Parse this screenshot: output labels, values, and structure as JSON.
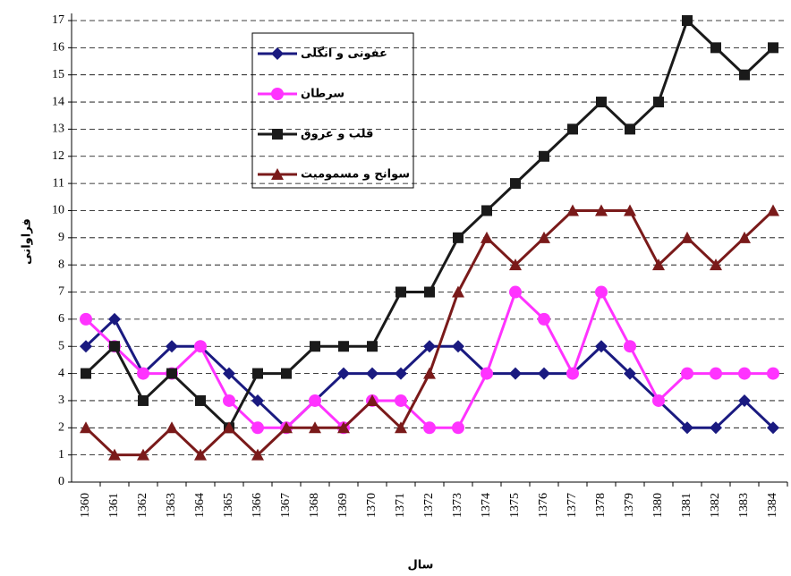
{
  "chart_data": {
    "type": "line",
    "x_label": "سال",
    "y_label": "فراوانی",
    "categories": [
      "1360",
      "1361",
      "1362",
      "1363",
      "1364",
      "1365",
      "1366",
      "1367",
      "1368",
      "1369",
      "1370",
      "1371",
      "1372",
      "1373",
      "1374",
      "1375",
      "1376",
      "1377",
      "1378",
      "1379",
      "1380",
      "1381",
      "1382",
      "1383",
      "1384"
    ],
    "series": [
      {
        "name": "عفونی و انگلی",
        "color": "#1a1a80",
        "marker": "diamond",
        "values": [
          5,
          6,
          4,
          5,
          5,
          4,
          3,
          2,
          3,
          4,
          4,
          4,
          5,
          5,
          4,
          4,
          4,
          4,
          5,
          4,
          3,
          2,
          2,
          3,
          2
        ]
      },
      {
        "name": "سرطان",
        "color": "#ff33ff",
        "marker": "circle",
        "values": [
          6,
          5,
          4,
          4,
          5,
          3,
          2,
          2,
          3,
          2,
          3,
          3,
          2,
          2,
          4,
          7,
          6,
          4,
          7,
          5,
          3,
          4,
          4,
          4,
          4
        ]
      },
      {
        "name": "قلب و عروق",
        "color": "#1a1a1a",
        "marker": "square",
        "values": [
          4,
          5,
          3,
          4,
          3,
          2,
          4,
          4,
          5,
          5,
          5,
          7,
          7,
          9,
          10,
          11,
          12,
          13,
          14,
          13,
          14,
          17,
          16,
          15,
          16
        ]
      },
      {
        "name": "سوانح و مسمومیت",
        "color": "#7a1a1a",
        "marker": "triangle",
        "values": [
          2,
          1,
          1,
          2,
          1,
          2,
          1,
          2,
          2,
          2,
          3,
          2,
          4,
          7,
          9,
          8,
          9,
          10,
          10,
          10,
          8,
          9,
          8,
          9,
          10
        ]
      }
    ],
    "ylim": [
      0,
      17
    ],
    "yticks": [
      0,
      1,
      2,
      3,
      4,
      5,
      6,
      7,
      8,
      9,
      10,
      11,
      12,
      13,
      14,
      15,
      16,
      17
    ],
    "grid": true
  }
}
